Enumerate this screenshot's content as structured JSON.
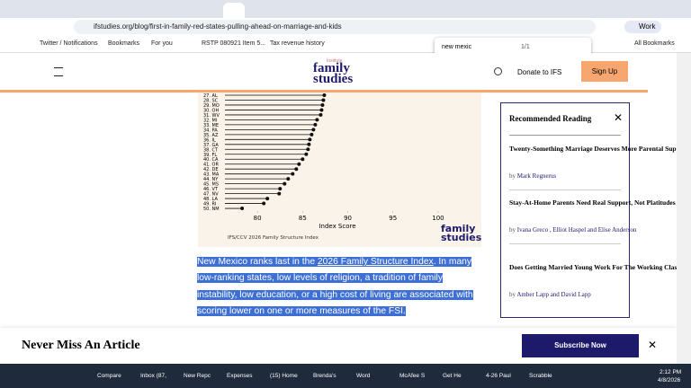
{
  "browser": {
    "url": "ifstudies.org/blog/first-in-family-red-states-pulling-ahead-on-marriage-and-kids",
    "profile": "Work",
    "bookmarks": [
      "Twitter / Notifications",
      "Bookmarks",
      "For you",
      "RSTP 080921 Item 5...",
      "Tax revenue history"
    ],
    "all_bookmarks": "All Bookmarks",
    "find": {
      "query": "new mexic",
      "count": "1/1"
    }
  },
  "site": {
    "logo_small": "Institute",
    "logo_1": "family",
    "logo_2": "studies",
    "donate": "Donate to IFS",
    "signup": "Sign Up"
  },
  "chart": {
    "type": "lollipop",
    "categories": [
      "27. AL",
      "28. SC",
      "29. MO",
      "30. OH",
      "31. WV",
      "32. MI",
      "33. ME",
      "34. PA",
      "35. AZ",
      "36. IL",
      "37. GA",
      "38. CT",
      "39. FL",
      "40. CA",
      "41. OR",
      "42. DE",
      "43. MA",
      "44. NY",
      "45. MS",
      "46. VT",
      "47. NV",
      "48. LA",
      "49. RI",
      "50. NM"
    ],
    "values": [
      87.4,
      87.3,
      87.2,
      87.1,
      87.0,
      86.6,
      86.4,
      86.2,
      86.0,
      85.8,
      85.7,
      85.6,
      85.4,
      85.0,
      84.6,
      84.3,
      83.9,
      83.4,
      83.0,
      82.5,
      82.4,
      81.1,
      80.7,
      78.3
    ],
    "xlim": [
      76.4,
      101.3
    ],
    "xticks": [
      80,
      85,
      90,
      95,
      100
    ],
    "xlabel": "Index Score",
    "source": "IFS/CCV 2026 Family Structure Index",
    "logo_1": "family",
    "logo_2": "studies",
    "color": "#111111"
  },
  "paragraph": {
    "start": "New Mexico",
    "middle": " ranks last in the ",
    "link": "2026 Family Structure Index",
    "end": ". In many low-ranking states, low levels of religion, a tradition of family instability, low education, or a high cost of living are associated with scoring lower on one or more measures of the FSI."
  },
  "sidebar": {
    "title": "Recommended Reading",
    "items": [
      {
        "title": "Twenty-Something Marriage Deserves More Parental Support",
        "by": "by",
        "authors": "Mark Regnerus"
      },
      {
        "title": "Stay-At-Home Parents Need Real Support, Not Platitudes",
        "by": "by",
        "authors": "Ivana Greco , Elliot Haspel and Elise Anderson"
      },
      {
        "title": "Does Getting Married Young Work For The Working Class?",
        "by": "by",
        "authors": "Amber Lapp and David Lapp"
      }
    ]
  },
  "banner": {
    "title": "Never Miss An Article",
    "button": "Subscribe Now"
  },
  "taskbar": {
    "items": [
      "Compare",
      "Inbox (87,",
      "New Repc",
      "Expenses",
      "(15) Home",
      "Brenda's",
      "Word",
      "McAfee S",
      "Get He",
      "4-26 Paul",
      "Scrabble"
    ],
    "time": "2:12 PM",
    "date": "4/8/2026"
  }
}
